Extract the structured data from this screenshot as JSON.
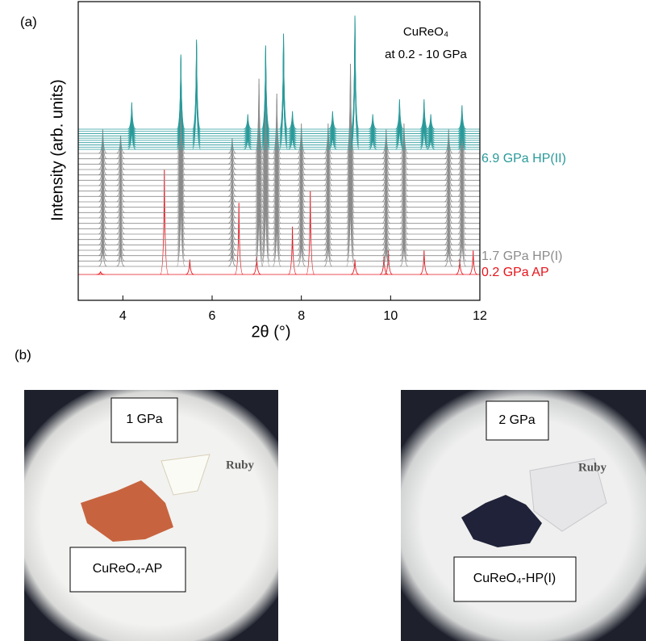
{
  "panel_labels": {
    "a": "(a)",
    "b": "(b)"
  },
  "chart_data": {
    "type": "waterfall",
    "annotation": [
      "CuReO₄",
      "at 0.2 - 10 GPa"
    ],
    "x_label": "2θ (°)",
    "y_label": "Intensity (arb. units)",
    "xlim": [
      3,
      12
    ],
    "xticks": [
      4,
      6,
      8,
      10,
      12
    ],
    "ylim": [
      0,
      100
    ],
    "series": [
      {
        "name": "0.2 GPa AP",
        "color": "#e8141b",
        "x": [
          3.5,
          4.93,
          5.5,
          6.6,
          7.0,
          7.8,
          8.2,
          9.2,
          9.85,
          9.95,
          10.75,
          11.55,
          11.85
        ],
        "values": [
          1,
          35,
          5,
          24,
          6,
          16,
          28,
          5,
          6,
          8,
          8,
          5,
          8
        ]
      },
      {
        "name": "1.7 GPa HP(I)",
        "color": "#8c8c8c",
        "x": [
          3.55,
          3.95,
          5.3,
          6.45,
          7.05,
          7.2,
          7.45,
          8.0,
          8.6,
          9.1,
          9.9,
          10.3,
          11.3,
          11.6
        ],
        "values": [
          8,
          6,
          30,
          5,
          25,
          30,
          20,
          10,
          10,
          30,
          8,
          10,
          8,
          12
        ]
      },
      {
        "name": "6.9 GPa HP(II)",
        "color": "#2a9a9a",
        "x": [
          4.2,
          5.3,
          5.65,
          6.8,
          7.2,
          7.6,
          7.8,
          8.7,
          9.2,
          9.6,
          10.2,
          10.75,
          10.9,
          11.6
        ],
        "values": [
          9,
          25,
          30,
          5,
          28,
          32,
          6,
          6,
          38,
          5,
          10,
          10,
          5,
          8
        ]
      }
    ]
  },
  "micrographs": [
    {
      "pressure": "1 GPa",
      "ruby": "Ruby",
      "sample": "CuReO₄-AP"
    },
    {
      "pressure": "2 GPa",
      "ruby": "Ruby",
      "sample": "CuReO₄-HP(I)"
    }
  ]
}
